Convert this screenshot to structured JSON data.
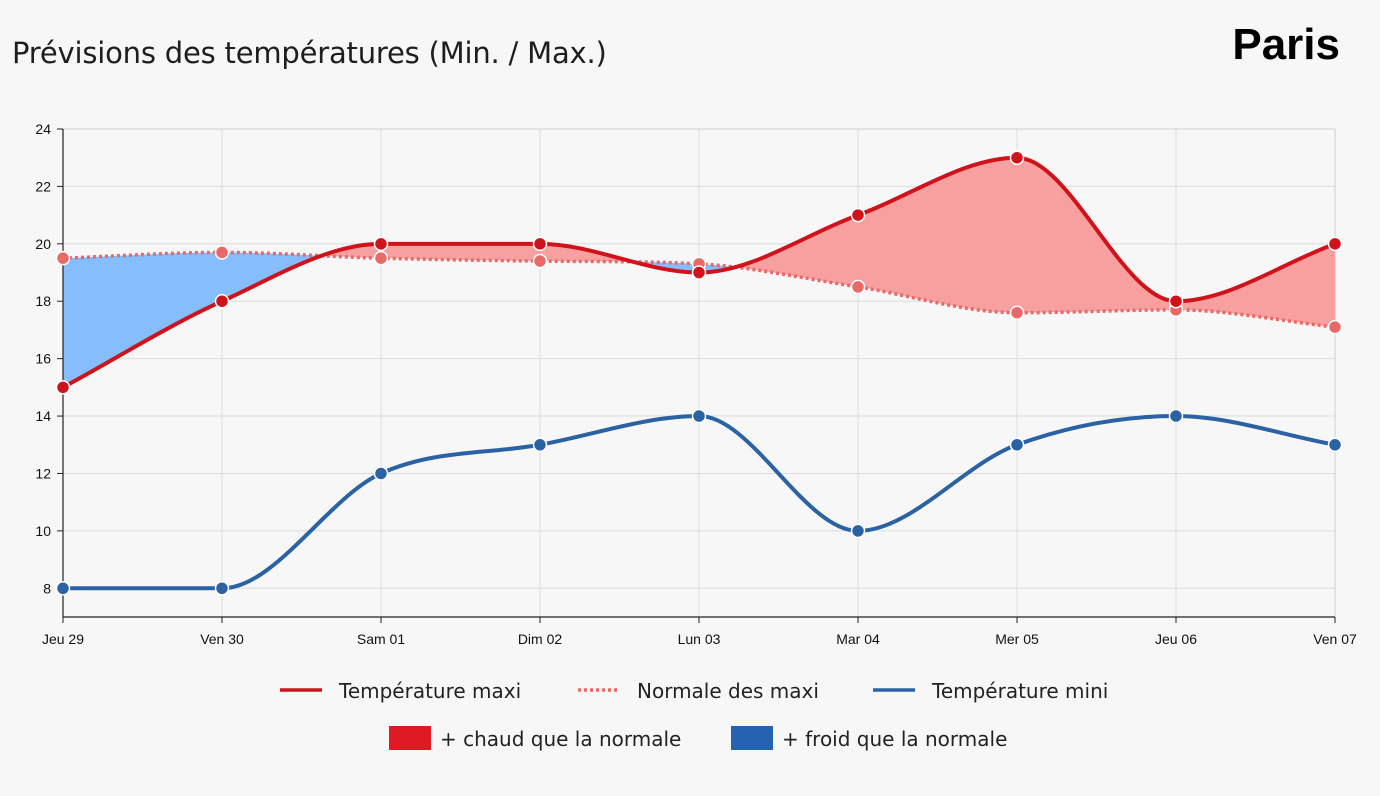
{
  "title": "Prévisions des températures (Min. / Max.)",
  "city": "Paris",
  "chart_data": {
    "type": "line",
    "categories": [
      "Jeu 29",
      "Ven 30",
      "Sam 01",
      "Dim 02",
      "Lun 03",
      "Mar 04",
      "Mer 05",
      "Jeu 06",
      "Ven 07"
    ],
    "ylim": [
      7,
      24
    ],
    "yticks": [
      8,
      10,
      12,
      14,
      16,
      18,
      20,
      22,
      24
    ],
    "grid": true,
    "legend_position": "bottom",
    "series": [
      {
        "name": "Température maxi",
        "color": "#d0121b",
        "style": "solid",
        "values": [
          15,
          18,
          20,
          20,
          19,
          21,
          23,
          18,
          20
        ]
      },
      {
        "name": "Normale des maxi",
        "color": "#e96868",
        "style": "dotted",
        "values": [
          19.5,
          19.7,
          19.5,
          19.4,
          19.3,
          18.5,
          17.6,
          17.7,
          17.1
        ]
      },
      {
        "name": "Température mini",
        "color": "#2b62a3",
        "style": "solid",
        "values": [
          8,
          8,
          12,
          13,
          14,
          10,
          13,
          14,
          13
        ]
      }
    ],
    "areas": [
      {
        "name": "+ chaud que la normale",
        "color": "#e01a22",
        "fill": "#f8a0a0"
      },
      {
        "name": "+ froid que la normale",
        "color": "#2463b0",
        "fill": "#86bdfc"
      }
    ]
  }
}
